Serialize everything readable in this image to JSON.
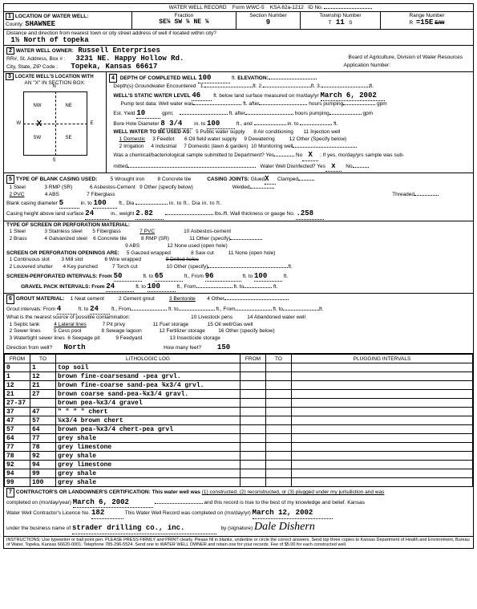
{
  "header": {
    "title": "WATER WELL RECORD",
    "form": "Form WWC-5",
    "ksa": "KSA 82a-1212",
    "id_label": "ID No."
  },
  "loc": {
    "section_label": "1",
    "title": "LOCATION OF WATER WELL:",
    "county_label": "County:",
    "county": "SHAWNEE",
    "fraction_label": "Fraction",
    "fraction": "SE¼    SW    ¼    NE    ¼",
    "sec_label": "Section Number",
    "sec": "9",
    "twp_label": "Township Number",
    "twp_t": "T",
    "twp": "11",
    "twp_s": "S",
    "rng_label": "Range Number",
    "rng_r": "R",
    "rng": "=15E",
    "rng_ew": "E/W",
    "dist_label": "Distance and direction from nearest town or city street address of well if located within city?",
    "dist": "1½ North of topeka"
  },
  "owner": {
    "section_label": "2",
    "title": "WATER WELL OWNER:",
    "name": "Russell Enterprises",
    "addr_label": "RR#, St. Address, Box # :",
    "addr": "3231  NE. Happy Hollow Rd.",
    "city_label": "City, State, ZIP Code :",
    "city": "Topeka, Kansas  66617",
    "board": "Board of Agriculture, Division of Water Resources",
    "app_label": "Application Number:"
  },
  "locate": {
    "section_label": "3",
    "title": "LOCATE WELL'S LOCATION WITH",
    "xbox": "AN \"X\" IN SECTION BOX:",
    "compass": {
      "n": "N",
      "s": "S",
      "e": "E",
      "w": "W",
      "nw": "NW",
      "ne": "NE",
      "sw": "SW",
      "se": "SE"
    }
  },
  "depth": {
    "section_label": "4",
    "title": "DEPTH OF COMPLETED WELL",
    "depth": "100",
    "ft": "ft.",
    "elev_label": "ELEVATION:",
    "gw_label": "Depth(s) Groundwater Encountered",
    "gw1": "1.",
    "gw2": "2.",
    "gw3": "3.",
    "static_label": "WELL'S STATIC WATER LEVEL",
    "static": "46",
    "static_txt": "ft. below land surface measured on mo/day/yr",
    "static_date": "March 6, 2002",
    "pump_label": "Pump test data:  Well water was",
    "pump_after": "ft. after",
    "pump_hours": "hours pumping",
    "gpm": "gpm",
    "est_label": "Est. Yield",
    "est": "10",
    "est_gpm": "gpm;",
    "bore_label": "Bore Hole Diameter",
    "bore1": "8  3/4",
    "bore_in": "in. to",
    "bore2": "100",
    "bore_ft": "ft., and",
    "bore_in2": "in. to",
    "bore_ft2": "ft.",
    "use_label": "WELL WATER TO BE USED AS:",
    "uses": [
      "1 Domestic",
      "3 Feedlot",
      "5 Public water supply",
      "8 Air conditioning",
      "11 Injection well",
      "2 Irrigation",
      "4 Industrial",
      "6 Oil field water supply",
      "9 Dewatering",
      "12 Other (Specify below)",
      "7 Domestic (lawn & garden)",
      "10 Monitoring well"
    ],
    "chem_label": "Was a chemical/bacteriological sample submitted to Department?  Yes",
    "chem_no": "No",
    "chem_x": "X",
    "chem_txt": "; If yes, mo/day/yrs sample was sub-",
    "mitted": "mitted",
    "disinfect": "Water Well  Disinfected?   Yes",
    "dis_x": "x",
    "dis_no": "No"
  },
  "casing": {
    "section_label": "5",
    "title": "TYPE OF BLANK CASING USED:",
    "types": [
      "1 Steel",
      "3 RMP (SR)",
      "5 Wrought iron",
      "8 Concrete tile",
      "2 PVC",
      "4 ABS",
      "6 Asbestos-Cement",
      "9 Other (specify below)",
      "7 Fiberglass"
    ],
    "joints_label": "CASING JOINTS:",
    "glued": "Glued",
    "glued_x": "X",
    "clamped": "Clamped",
    "welded": "Welded",
    "threaded": "Threaded",
    "diam_label": "Blank casing diameter",
    "diam": "5",
    "diam_in": "in. to",
    "diam_to": "100",
    "diam_ft": "ft., Dia",
    "diam_etc": "in. to               ft., Dia               in. to               ft.",
    "height_label": "Casing height above land surface",
    "height": "24",
    "height_in": "in., weight",
    "weight": "2.82",
    "lbs": "lbs./ft. Wall thickness or gauge No.",
    "gauge": ".258"
  },
  "screen": {
    "title": "TYPE OF SCREEN OR PERFORATION MATERIAL:",
    "mats": [
      "1 Steel",
      "3 Stainless steel",
      "5 Fiberglass",
      "7 PVC",
      "8 RMP (SR)",
      "10 Asbestos-cement",
      "2 Brass",
      "4 Galvanized steel",
      "6 Concrete tile",
      "9 ABS",
      "11 Other (specify)",
      "12 None used (open hole)"
    ],
    "open_label": "SCREEN OR PERFORATION OPENINGS ARE:",
    "opens": [
      "1 Continuous slot",
      "3 Mill slot",
      "5 Gauzed wrapped",
      "8 Saw cut",
      "11 None (open hole)",
      "2 Louvered shutter",
      "4 Key punched",
      "6 Wire wrapped",
      "9 Drilled holes",
      "7 Torch cut",
      "10 Other (specify)"
    ],
    "perf_label": "SCREEN-PERFORATED INTERVALS:  From",
    "p1f": "50",
    "p1t": "65",
    "p2f": "96",
    "p2t": "100",
    "grav_label": "GRAVEL PACK INTERVALS:  From",
    "g1f": "24",
    "g1t": "100",
    "ft_to": "ft. to",
    "ft_from": "ft., From",
    "ft": "ft."
  },
  "grout": {
    "section_label": "6",
    "title": "GROUT MATERIAL:",
    "mats": [
      "1 Neat cement",
      "2 Cement grout",
      "3 Bentonite",
      "4 Other"
    ],
    "int_label": "Grout intervals:  From",
    "g1f": "4",
    "g1t": "24",
    "contam_label": "What is the nearest source of possible contamination:",
    "contams": [
      "1 Septic tank",
      "4 Lateral lines",
      "7 Pit privy",
      "10 Livestock pens",
      "14 Abandoned water well",
      "2 Sewer lines",
      "5 Cess pool",
      "8 Sewage lagoon",
      "11 Fuel storage",
      "15 Oil well/Gas well",
      "3 Watertight sewer lines",
      "6 Seepage pit",
      "9 Feedyard",
      "12 Fertilizer storage",
      "16 Other (specify below)",
      "13 Insecticide storage"
    ],
    "dir_label": "Direction from well?",
    "dir": "North",
    "feet_label": "How many feet?",
    "feet": "150"
  },
  "log": {
    "headers": [
      "FROM",
      "TO",
      "LITHOLOGIC LOG",
      "FROM",
      "TO",
      "PLUGGING INTERVALS"
    ],
    "rows": [
      [
        "0",
        "1",
        "top soil",
        "",
        "",
        ""
      ],
      [
        "1",
        "12",
        "brown fine-coarsesand -pea grvl.",
        "",
        "",
        ""
      ],
      [
        "12",
        "21",
        "brown fine-coarse sand-pea ¾x3/4 grvl.",
        "",
        "",
        ""
      ],
      [
        "21",
        "27",
        "brown coarse sand-pea-¾x3/4 gravl.",
        "",
        "",
        ""
      ],
      [
        "27-37",
        "",
        "brown pea-¾x3/4 gravel",
        "",
        "",
        ""
      ],
      [
        "37",
        "47",
        "\"       \"       \"      \"    chert",
        "",
        "",
        ""
      ],
      [
        "47",
        "57",
        "¼x3/4 brown chert",
        "",
        "",
        ""
      ],
      [
        "57",
        "64",
        "brown pea-¾x3/4 chert-pea grvl",
        "",
        "",
        ""
      ],
      [
        "64",
        "77",
        "grey shale",
        "",
        "",
        ""
      ],
      [
        "77",
        "78",
        "grey limestone",
        "",
        "",
        ""
      ],
      [
        "78",
        "92",
        "grey shale",
        "",
        "",
        ""
      ],
      [
        "92",
        "94",
        "grey limestone",
        "",
        "",
        ""
      ],
      [
        "94",
        "99",
        "grey shale",
        "",
        "",
        ""
      ],
      [
        "99",
        "100",
        "grey shale",
        "",
        "",
        ""
      ]
    ]
  },
  "cert": {
    "section_label": "7",
    "title": "CONTRACTOR'S OR LANDOWNER'S CERTIFICATION: This water well was",
    "opts": "(1) constructed, (2) reconstructed, or (3) plugged under my jurisdiction and was",
    "comp_label": "completed on (mo/day/year)",
    "comp_date": "March 6, 2002",
    "true_txt": "and this record is true to the best of my knowledge and belief. Kansas",
    "lic_label": "Water Well Contractor's Licence No.",
    "lic": "182",
    "rec_txt": "This Water Well Record was completed on (mo/day/yr)",
    "rec_date": "March 12, 2002",
    "bus_label": "under the business name of",
    "bus": "strader drilling co., inc.",
    "sig_label": "by (signature)",
    "sig": "Dale Dishern"
  },
  "footer": "INSTRUCTIONS: Use typewriter or ball point pen. PLEASE PRESS FIRMLY and PRINT clearly. Please fill in blanks, underline or circle the correct answers. Send top three copies to Kansas Department of Health and Environment, Bureau of Water, Topeka, Kansas 66620-0001. Telephone 785-296-5524. Send one to WATER WELL OWNER and retain one for your records. Fee of $5.00 for each constructed well."
}
